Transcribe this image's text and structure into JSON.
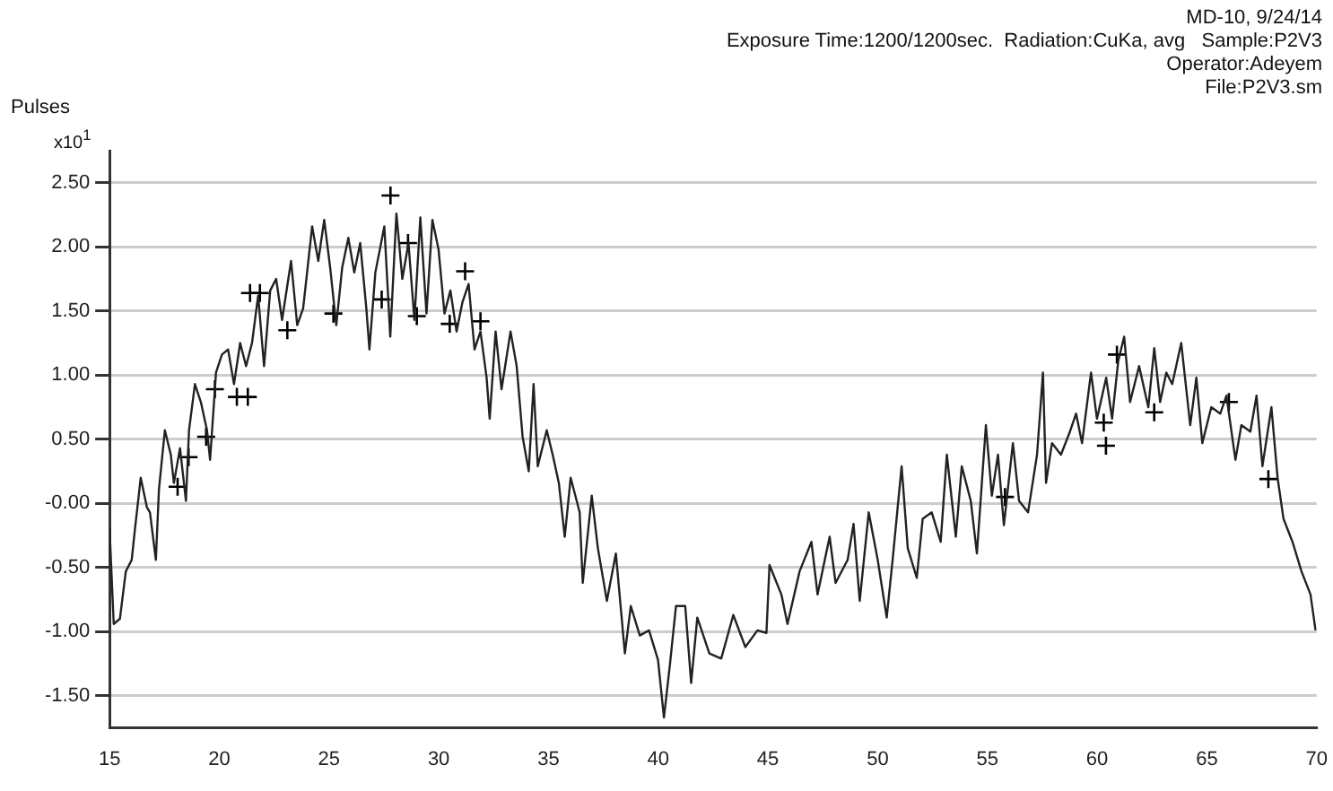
{
  "chart_data": {
    "type": "line",
    "title": "MD-10, 9/24/14",
    "ylabel": "Pulses",
    "annotations": [
      "Exposure Time:1200/1200sec.  Radiation:CuKa, avg   Sample:P2V3",
      "Operator:Adeyem",
      "File:P2V3.sm",
      "x10$^{1}$"
    ],
    "xlim": [
      15,
      70
    ],
    "xticks": [
      15,
      20,
      25,
      30,
      35,
      40,
      45,
      50,
      55,
      60,
      65,
      70
    ],
    "ylim": [
      -1.75,
      2.75
    ],
    "yticks": [
      {
        "value": -1.5,
        "label": "-1.50"
      },
      {
        "value": -1,
        "label": "-1.00"
      },
      {
        "value": -0.5,
        "label": "-0.50"
      },
      {
        "value": 0,
        "label": "-0.00"
      },
      {
        "value": 0.5,
        "label": "0.50"
      },
      {
        "value": 1,
        "label": "1.00"
      },
      {
        "value": 1.5,
        "label": "1.50"
      },
      {
        "value": 2,
        "label": "2.00"
      },
      {
        "value": 2.5,
        "label": "2.50"
      }
    ],
    "grid": "y",
    "legend": false,
    "series": [
      {
        "type": "line",
        "color": "#222222",
        "marker": "none",
        "line_style": "solid",
        "x": [
          15.0,
          15.19,
          15.47,
          15.74,
          16.01,
          16.15,
          16.42,
          16.7,
          16.84,
          17.11,
          17.25,
          17.52,
          17.79,
          17.93,
          18.21,
          18.48,
          18.62,
          18.89,
          19.16,
          19.44,
          19.58,
          19.85,
          20.12,
          20.4,
          20.67,
          20.95,
          21.22,
          21.49,
          21.77,
          22.04,
          22.32,
          22.59,
          22.86,
          23.27,
          23.55,
          23.82,
          24.23,
          24.51,
          24.78,
          25.05,
          25.33,
          25.6,
          25.88,
          26.15,
          26.42,
          26.7,
          26.84,
          27.11,
          27.52,
          27.79,
          28.07,
          28.34,
          28.62,
          28.89,
          29.16,
          29.44,
          29.71,
          29.99,
          30.26,
          30.53,
          30.81,
          31.08,
          31.36,
          31.63,
          31.9,
          32.18,
          32.32,
          32.59,
          32.86,
          33.27,
          33.55,
          33.82,
          34.1,
          34.32,
          34.51,
          34.92,
          35.19,
          35.47,
          35.74,
          36.01,
          36.42,
          36.56,
          36.97,
          37.25,
          37.66,
          38.07,
          38.48,
          38.75,
          39.16,
          39.58,
          39.99,
          40.26,
          40.53,
          40.81,
          41.23,
          41.5,
          41.78,
          42.33,
          42.87,
          43.42,
          43.97,
          44.52,
          44.93,
          45.07,
          45.61,
          45.89,
          46.44,
          46.98,
          47.26,
          47.81,
          48.08,
          48.63,
          48.9,
          49.18,
          49.59,
          50.0,
          50.41,
          50.68,
          51.09,
          51.37,
          51.78,
          52.05,
          52.46,
          52.87,
          53.15,
          53.56,
          53.83,
          54.24,
          54.52,
          54.93,
          55.2,
          55.48,
          55.75,
          56.16,
          56.44,
          56.85,
          57.26,
          57.53,
          57.67,
          57.94,
          58.35,
          58.76,
          59.04,
          59.31,
          59.72,
          59.99,
          60.41,
          60.68,
          60.96,
          61.23,
          61.5,
          61.91,
          62.33,
          62.6,
          62.87,
          63.15,
          63.42,
          63.83,
          64.24,
          64.52,
          64.79,
          65.2,
          65.61,
          65.89,
          66.3,
          66.57,
          66.98,
          67.26,
          67.53,
          67.94,
          68.22,
          68.49,
          68.9,
          69.31,
          69.72,
          69.95
        ],
        "values": [
          -0.2,
          -0.94,
          -0.9,
          -0.53,
          -0.44,
          -0.21,
          0.2,
          -0.03,
          -0.07,
          -0.44,
          0.11,
          0.57,
          0.38,
          0.16,
          0.43,
          0.02,
          0.57,
          0.93,
          0.79,
          0.57,
          0.34,
          1.02,
          1.16,
          1.2,
          0.93,
          1.25,
          1.07,
          1.25,
          1.62,
          1.07,
          1.66,
          1.75,
          1.43,
          1.89,
          1.39,
          1.52,
          2.16,
          1.89,
          2.21,
          1.84,
          1.39,
          1.84,
          2.07,
          1.8,
          2.03,
          1.52,
          1.2,
          1.8,
          2.16,
          1.3,
          2.26,
          1.75,
          2.03,
          1.43,
          2.23,
          1.48,
          2.21,
          1.98,
          1.48,
          1.66,
          1.34,
          1.57,
          1.71,
          1.2,
          1.34,
          0.98,
          0.66,
          1.34,
          0.89,
          1.34,
          1.07,
          0.52,
          0.25,
          0.93,
          0.29,
          0.57,
          0.38,
          0.16,
          -0.26,
          0.2,
          -0.07,
          -0.62,
          0.06,
          -0.35,
          -0.76,
          -0.39,
          -1.17,
          -0.8,
          -1.03,
          -0.99,
          -1.22,
          -1.67,
          -1.26,
          -0.8,
          -0.8,
          -1.4,
          -0.89,
          -1.17,
          -1.21,
          -0.87,
          -1.12,
          -0.99,
          -1.01,
          -0.48,
          -0.71,
          -0.94,
          -0.53,
          -0.3,
          -0.71,
          -0.26,
          -0.62,
          -0.44,
          -0.16,
          -0.76,
          -0.07,
          -0.44,
          -0.89,
          -0.44,
          0.29,
          -0.35,
          -0.58,
          -0.12,
          -0.07,
          -0.3,
          0.38,
          -0.26,
          0.29,
          0.02,
          -0.39,
          0.61,
          0.06,
          0.38,
          -0.17,
          0.47,
          0.02,
          -0.07,
          0.38,
          1.02,
          0.16,
          0.47,
          0.38,
          0.56,
          0.7,
          0.47,
          1.02,
          0.66,
          0.98,
          0.66,
          1.11,
          1.3,
          0.79,
          1.07,
          0.75,
          1.21,
          0.79,
          1.02,
          0.93,
          1.25,
          0.61,
          0.98,
          0.47,
          0.75,
          0.7,
          0.84,
          0.34,
          0.61,
          0.56,
          0.84,
          0.29,
          0.75,
          0.2,
          -0.12,
          -0.3,
          -0.53,
          -0.71,
          -0.99
        ]
      },
      {
        "type": "scatter",
        "color": "#000000",
        "marker": "cross",
        "x": [
          18.1,
          18.6,
          19.4,
          19.8,
          20.8,
          21.3,
          21.4,
          21.85,
          23.1,
          25.2,
          27.4,
          27.8,
          28.6,
          29.0,
          30.5,
          31.2,
          31.9,
          55.8,
          60.3,
          60.4,
          60.9,
          62.6,
          66.0,
          67.8
        ],
        "values": [
          0.13,
          0.36,
          0.52,
          0.89,
          0.83,
          0.83,
          1.64,
          1.64,
          1.35,
          1.48,
          1.59,
          2.4,
          2.03,
          1.46,
          1.4,
          1.81,
          1.42,
          0.05,
          0.63,
          0.45,
          1.16,
          0.71,
          0.79,
          0.19
        ]
      }
    ]
  }
}
